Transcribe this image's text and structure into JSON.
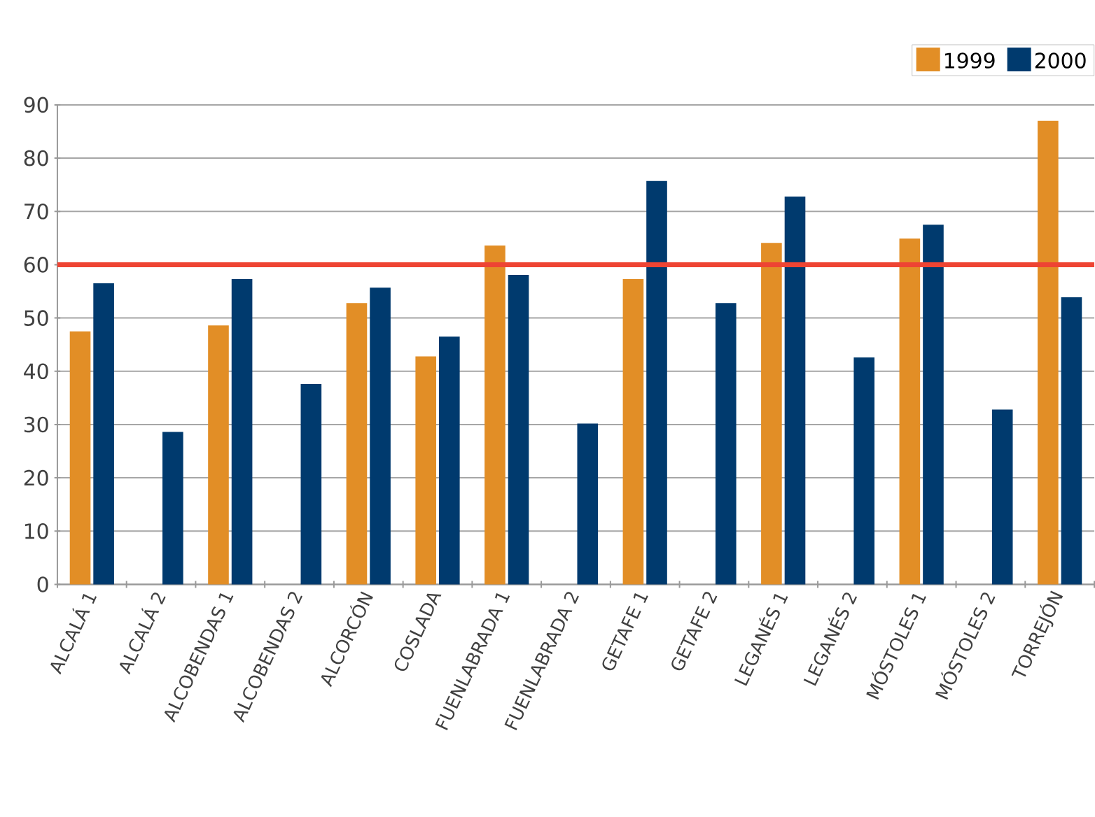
{
  "chart_data": {
    "type": "bar",
    "categories": [
      "ALCALÁ 1",
      "ALCALÁ 2",
      "ALCOBENDAS 1",
      "ALCOBENDAS 2",
      "ALCORCÓN",
      "COSLADA",
      "FUENLABRADA 1",
      "FUENLABRADA 2",
      "GETAFE 1",
      "GETAFE 2",
      "LEGANÉS 1",
      "LEGANÉS 2",
      "MÓSTOLES 1",
      "MÓSTOLES 2",
      "TORREJÓN"
    ],
    "series": [
      {
        "name": "1999",
        "color": "#e28e26",
        "values": [
          47.5,
          null,
          48.6,
          null,
          52.8,
          42.8,
          63.6,
          null,
          57.3,
          null,
          64.1,
          null,
          64.9,
          null,
          87.0
        ]
      },
      {
        "name": "2000",
        "color": "#003a6e",
        "values": [
          56.5,
          28.6,
          57.3,
          37.6,
          55.7,
          46.5,
          58.1,
          30.2,
          75.7,
          52.8,
          72.8,
          42.6,
          67.5,
          32.8,
          53.9
        ]
      }
    ],
    "ylim": [
      0,
      90
    ],
    "yticks": [
      0,
      10,
      20,
      30,
      40,
      50,
      60,
      70,
      80,
      90
    ],
    "grid": "y",
    "legend": "top right",
    "ref_lines": [
      {
        "axis": "y",
        "value": 60,
        "color": "#ee4433"
      }
    ]
  }
}
